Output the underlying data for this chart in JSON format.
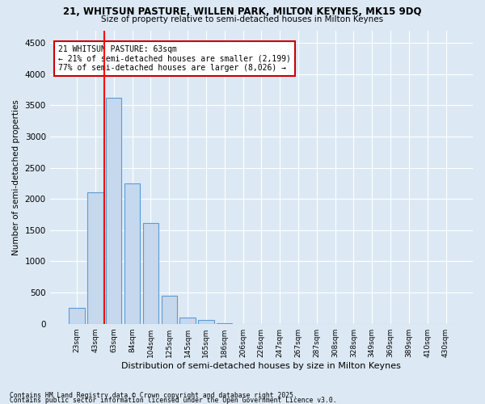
{
  "title_line1": "21, WHITSUN PASTURE, WILLEN PARK, MILTON KEYNES, MK15 9DQ",
  "title_line2": "Size of property relative to semi-detached houses in Milton Keynes",
  "xlabel": "Distribution of semi-detached houses by size in Milton Keynes",
  "ylabel": "Number of semi-detached properties",
  "categories": [
    "23sqm",
    "43sqm",
    "63sqm",
    "84sqm",
    "104sqm",
    "125sqm",
    "145sqm",
    "165sqm",
    "186sqm",
    "206sqm",
    "226sqm",
    "247sqm",
    "267sqm",
    "287sqm",
    "308sqm",
    "328sqm",
    "349sqm",
    "369sqm",
    "389sqm",
    "410sqm",
    "430sqm"
  ],
  "values": [
    250,
    2100,
    3620,
    2250,
    1620,
    450,
    100,
    58,
    5,
    0,
    0,
    0,
    0,
    0,
    0,
    0,
    0,
    0,
    0,
    0,
    0
  ],
  "bar_color": "#c5d8ed",
  "bar_edge_color": "#5b9bd5",
  "red_line_index": 2,
  "ylim": [
    0,
    4700
  ],
  "yticks": [
    0,
    500,
    1000,
    1500,
    2000,
    2500,
    3000,
    3500,
    4000,
    4500
  ],
  "annotation_title": "21 WHITSUN PASTURE: 63sqm",
  "annotation_line1": "← 21% of semi-detached houses are smaller (2,199)",
  "annotation_line2": "77% of semi-detached houses are larger (8,026) →",
  "annotation_box_color": "#ffffff",
  "annotation_box_edge": "#cc0000",
  "footer_line1": "Contains HM Land Registry data © Crown copyright and database right 2025.",
  "footer_line2": "Contains public sector information licensed under the Open Government Licence v3.0.",
  "background_color": "#dce9f5",
  "plot_bg_color": "#dce9f5",
  "grid_color": "#ffffff"
}
